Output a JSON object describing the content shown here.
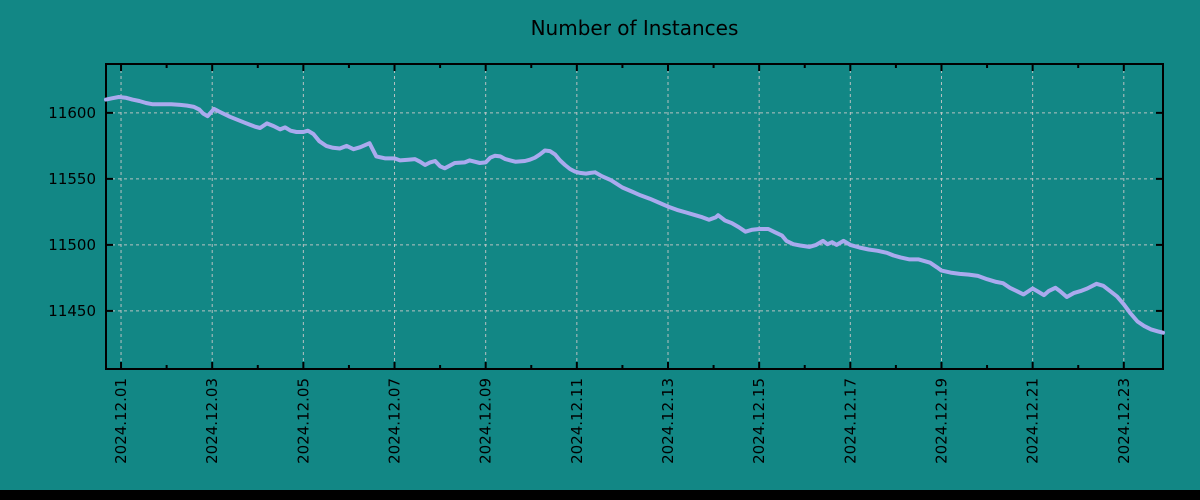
{
  "window": {
    "title": "Number of Instances"
  },
  "colors": {
    "background": "#128785",
    "line": "#aaaaee",
    "grid": "#c8c8c8",
    "axis": "#000000",
    "text": "#000000",
    "taskbar": "#000000"
  },
  "chart_data": {
    "type": "line",
    "title": "Number of Instances",
    "grid": true,
    "legend": "none",
    "x_axis": {
      "xlim": [
        0.67,
        23.86
      ],
      "label_rotation_deg": -90,
      "tick_labels": [
        {
          "day": 1,
          "label": "2024.12.01"
        },
        {
          "day": 3,
          "label": "2024.12.03"
        },
        {
          "day": 5,
          "label": "2024.12.05"
        },
        {
          "day": 7,
          "label": "2024.12.07"
        },
        {
          "day": 9,
          "label": "2024.12.09"
        },
        {
          "day": 11,
          "label": "2024.12.11"
        },
        {
          "day": 13,
          "label": "2024.12.13"
        },
        {
          "day": 15,
          "label": "2024.12.15"
        },
        {
          "day": 17,
          "label": "2024.12.17"
        },
        {
          "day": 19,
          "label": "2024.12.19"
        },
        {
          "day": 21,
          "label": "2024.12.21"
        },
        {
          "day": 23,
          "label": "2024.12.23"
        }
      ],
      "minor_tick_days": [
        2,
        4,
        6,
        8,
        10,
        12,
        14,
        16,
        18,
        20,
        22
      ]
    },
    "y_axis": {
      "ylim": [
        11406,
        11637
      ],
      "ticks": [
        11450,
        11500,
        11550,
        11600
      ]
    },
    "series": [
      {
        "name": "instances",
        "x_days": [
          0.67,
          0.8,
          0.95,
          1.1,
          1.25,
          1.4,
          1.55,
          1.7,
          1.9,
          2.1,
          2.3,
          2.45,
          2.6,
          2.72,
          2.8,
          2.9,
          3.04,
          3.15,
          3.24,
          3.39,
          3.5,
          3.61,
          3.72,
          3.83,
          3.94,
          4.05,
          4.2,
          4.35,
          4.49,
          4.6,
          4.72,
          4.85,
          5.0,
          5.1,
          5.22,
          5.35,
          5.5,
          5.65,
          5.8,
          5.95,
          6.1,
          6.25,
          6.45,
          6.6,
          6.8,
          7.0,
          7.12,
          7.3,
          7.45,
          7.56,
          7.67,
          7.78,
          7.89,
          8.0,
          8.1,
          8.21,
          8.32,
          8.54,
          8.65,
          8.76,
          8.87,
          9.0,
          9.1,
          9.2,
          9.32,
          9.43,
          9.54,
          9.65,
          9.86,
          9.97,
          10.08,
          10.19,
          10.3,
          10.41,
          10.52,
          10.63,
          10.74,
          10.85,
          10.96,
          11.07,
          11.2,
          11.3,
          11.4,
          11.55,
          11.75,
          12.0,
          12.2,
          12.4,
          12.6,
          12.8,
          13.0,
          13.2,
          13.4,
          13.6,
          13.75,
          13.9,
          14.05,
          14.1,
          14.25,
          14.4,
          14.55,
          14.7,
          14.85,
          15.0,
          15.2,
          15.35,
          15.5,
          15.6,
          15.75,
          15.9,
          16.1,
          16.25,
          16.4,
          16.5,
          16.6,
          16.7,
          16.85,
          17.0,
          17.2,
          17.4,
          17.6,
          17.8,
          17.95,
          18.1,
          18.3,
          18.5,
          18.75,
          18.9,
          19.0,
          19.2,
          19.4,
          19.6,
          19.8,
          20.0,
          20.2,
          20.35,
          20.5,
          20.65,
          20.8,
          21.0,
          21.1,
          21.25,
          21.35,
          21.5,
          21.6,
          21.75,
          21.9,
          22.05,
          22.2,
          22.4,
          22.55,
          22.7,
          22.85,
          23.0,
          23.15,
          23.3,
          23.45,
          23.6,
          23.75,
          23.86
        ],
        "values": [
          11610,
          11611,
          11612,
          11611.5,
          11610,
          11609,
          11607.5,
          11606.5,
          11606.5,
          11606.5,
          11606,
          11605.5,
          11604.5,
          11602.5,
          11599.5,
          11597.5,
          11603,
          11601,
          11599.5,
          11597,
          11595.5,
          11594,
          11592.5,
          11591,
          11589.5,
          11588.5,
          11592,
          11590,
          11587.5,
          11589,
          11586.5,
          11585.5,
          11585.5,
          11586.5,
          11584,
          11578.5,
          11575,
          11573.5,
          11573,
          11575,
          11572.5,
          11574,
          11577,
          11567,
          11565.5,
          11565.5,
          11564,
          11564.5,
          11565,
          11563,
          11560.5,
          11562.5,
          11563.5,
          11559.5,
          11558,
          11560,
          11562,
          11562.5,
          11564,
          11563,
          11562,
          11562.5,
          11566,
          11567.5,
          11567,
          11565,
          11564,
          11563,
          11563.5,
          11564.5,
          11566,
          11568.5,
          11571.5,
          11571,
          11568.5,
          11564,
          11560.5,
          11557.5,
          11555.5,
          11554.5,
          11554,
          11554.5,
          11555,
          11552,
          11549,
          11543.5,
          11540.5,
          11537.5,
          11535,
          11532,
          11529,
          11526.5,
          11524.5,
          11522.5,
          11521,
          11519,
          11521,
          11522.5,
          11518.5,
          11516.5,
          11513.5,
          11510,
          11511.5,
          11512,
          11512,
          11509.5,
          11507,
          11503,
          11500.5,
          11499.5,
          11498.5,
          11500,
          11503,
          11500.5,
          11502,
          11500,
          11503,
          11500,
          11498,
          11496.5,
          11495.5,
          11494,
          11492,
          11490.5,
          11489,
          11489,
          11486.5,
          11483,
          11480.5,
          11479,
          11478,
          11477.5,
          11476.5,
          11474,
          11472,
          11471,
          11467.5,
          11465,
          11462.5,
          11467,
          11465,
          11462,
          11465,
          11467.5,
          11465,
          11460.5,
          11463.5,
          11465,
          11467,
          11470.5,
          11469,
          11465,
          11461,
          11455,
          11448,
          11442,
          11438.5,
          11436,
          11434.5,
          11433.5
        ]
      }
    ]
  }
}
